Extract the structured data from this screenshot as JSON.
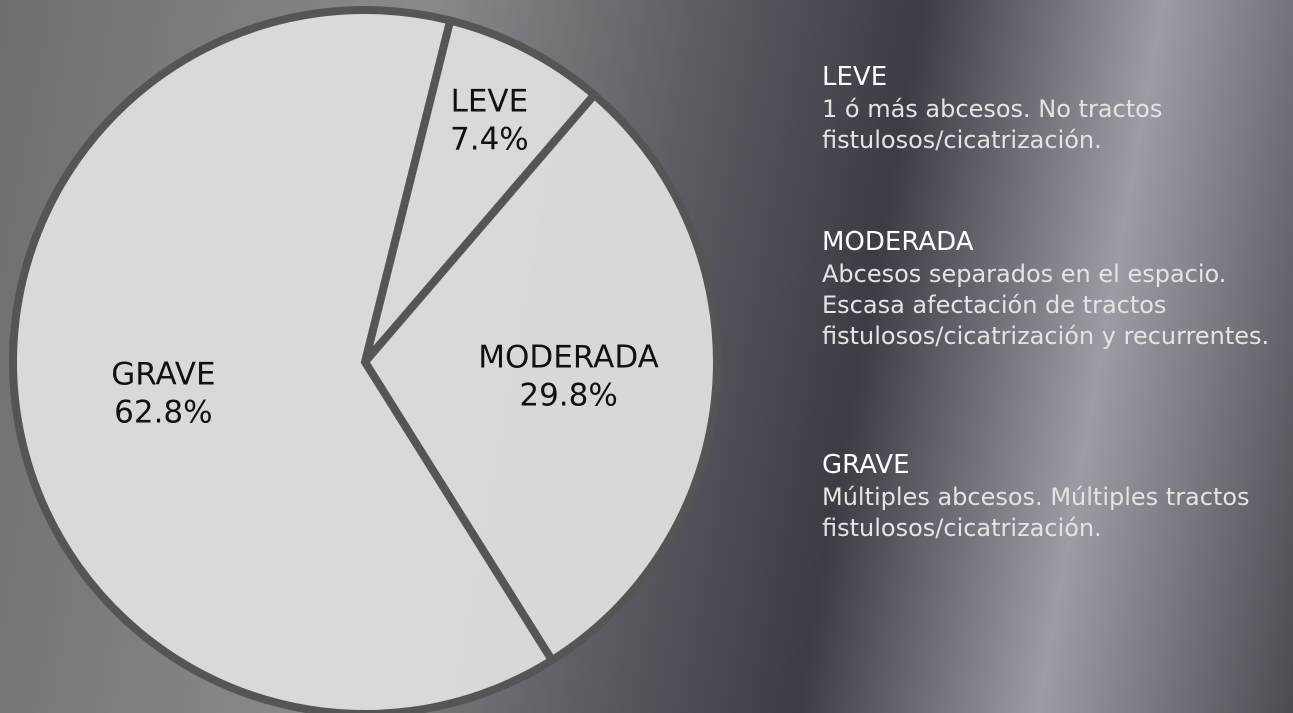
{
  "chart_data": {
    "type": "pie",
    "categories": [
      "LEVE",
      "MODERADA",
      "GRAVE"
    ],
    "values": [
      7.4,
      29.8,
      62.8
    ],
    "value_labels": [
      "7.4%",
      "29.8%",
      "62.8%"
    ],
    "color": "#dcdcdc",
    "annotations": [
      "1 ó más abcesos. No tractos fistulosos/cicatrización.",
      "Abcesos separados en el espacio. Escasa afectación de tractos fistulosos/cicatrización y recurrentes.",
      "Múltiples abcesos. Múltiples tractos fistulosos/cicatrización."
    ]
  }
}
